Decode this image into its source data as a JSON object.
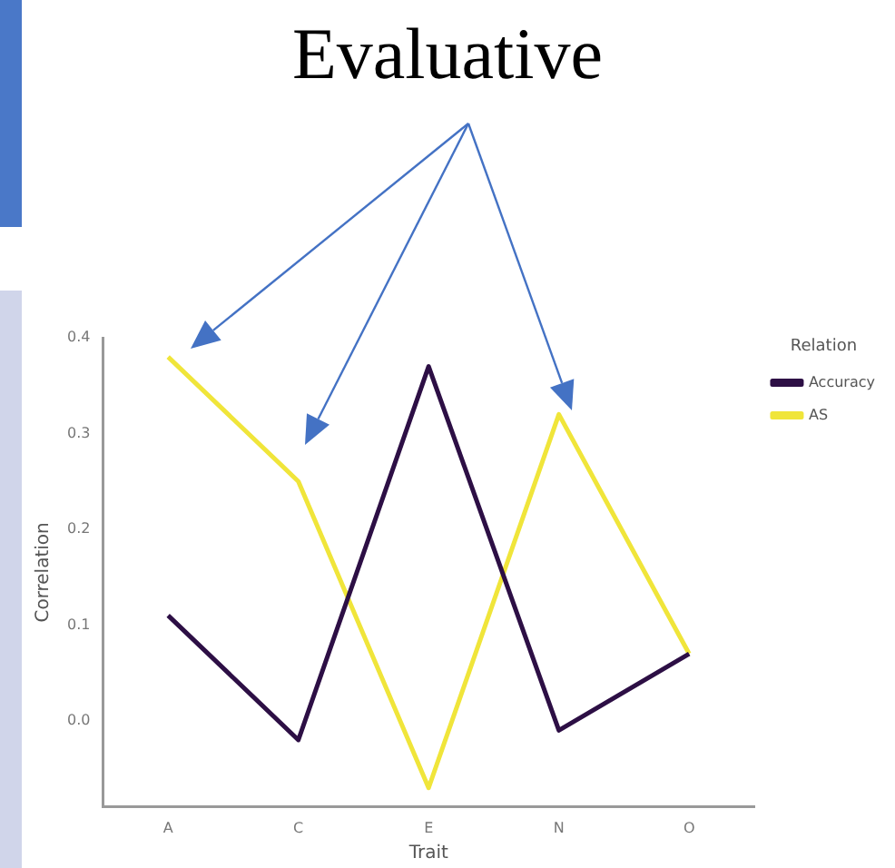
{
  "chart_data": {
    "type": "line",
    "title": "Evaluative",
    "xlabel": "Trait",
    "ylabel": "Correlation",
    "legend_title": "Relation",
    "legend": "top right",
    "grid": false,
    "marker": "none",
    "line_style": "solid",
    "categories": [
      "A",
      "C",
      "E",
      "N",
      "O"
    ],
    "ylim": [
      -0.09,
      0.4
    ],
    "yticks": [
      {
        "value": 0,
        "label": "0.0"
      },
      0.1,
      0.2,
      0.3,
      0.4
    ],
    "series": [
      {
        "name": "Accuracy",
        "color": "#2d0f45",
        "values": [
          0.11,
          -0.02,
          0.37,
          -0.01,
          0.07
        ]
      },
      {
        "name": "AS",
        "color": "#f0e53a",
        "values": [
          0.38,
          0.25,
          -0.07,
          0.32,
          0.07
        ]
      }
    ]
  }
}
